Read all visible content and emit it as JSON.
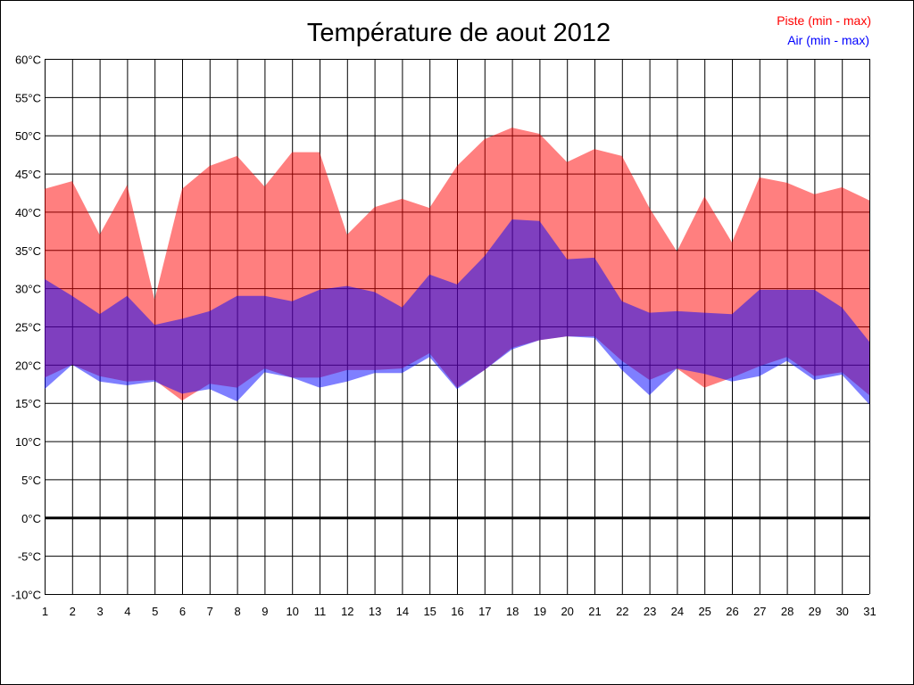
{
  "chart_data": {
    "type": "area",
    "title": "Température de aout 2012",
    "xlabel": "",
    "ylabel": "",
    "ylim": [
      -10,
      60
    ],
    "ystep": 5,
    "yunit": "°C",
    "x": [
      1,
      2,
      3,
      4,
      5,
      6,
      7,
      8,
      9,
      10,
      11,
      12,
      13,
      14,
      15,
      16,
      17,
      18,
      19,
      20,
      21,
      22,
      23,
      24,
      25,
      26,
      27,
      28,
      29,
      30,
      31
    ],
    "grid": true,
    "legend_position": "top-right",
    "series": [
      {
        "name": "Piste (min - max)",
        "color": "#ff0000",
        "min": [
          18.3,
          20,
          18.5,
          17.8,
          18,
          15.3,
          17.5,
          17,
          19.5,
          18.3,
          18.3,
          19.3,
          19.3,
          19.5,
          21.5,
          17,
          19.3,
          22.2,
          23.2,
          23.7,
          23.7,
          20.5,
          18,
          19.5,
          17,
          18.3,
          19.8,
          21,
          18.5,
          19,
          16
        ],
        "max": [
          43,
          44,
          37,
          43.5,
          28.5,
          43,
          46,
          47.3,
          43.3,
          47.8,
          47.8,
          37,
          40.6,
          41.7,
          40.5,
          46,
          49.5,
          51,
          50.2,
          46.5,
          48.2,
          47.3,
          40.5,
          34.8,
          42,
          36,
          44.5,
          43.8,
          42.3,
          43.2,
          41.5
        ]
      },
      {
        "name": "Air (min - max)",
        "color": "#0000ff",
        "min": [
          16.8,
          20,
          17.8,
          17.3,
          17.8,
          16.2,
          16.8,
          15.2,
          19,
          18.3,
          17,
          17.8,
          18.9,
          18.9,
          21,
          16.8,
          19.3,
          22,
          23.2,
          23.7,
          23.5,
          19.3,
          16,
          19.5,
          18.8,
          17.8,
          18.5,
          20.5,
          18,
          18.7,
          14.8
        ],
        "max": [
          31.2,
          29,
          26.6,
          29,
          25.2,
          26,
          27,
          29,
          29,
          28.3,
          29.8,
          30.3,
          29.5,
          27.5,
          31.8,
          30.5,
          34.2,
          39,
          38.8,
          33.8,
          34,
          28.3,
          26.8,
          27,
          26.8,
          26.6,
          29.8,
          29.8,
          29.8,
          27.5,
          23
        ]
      }
    ]
  }
}
